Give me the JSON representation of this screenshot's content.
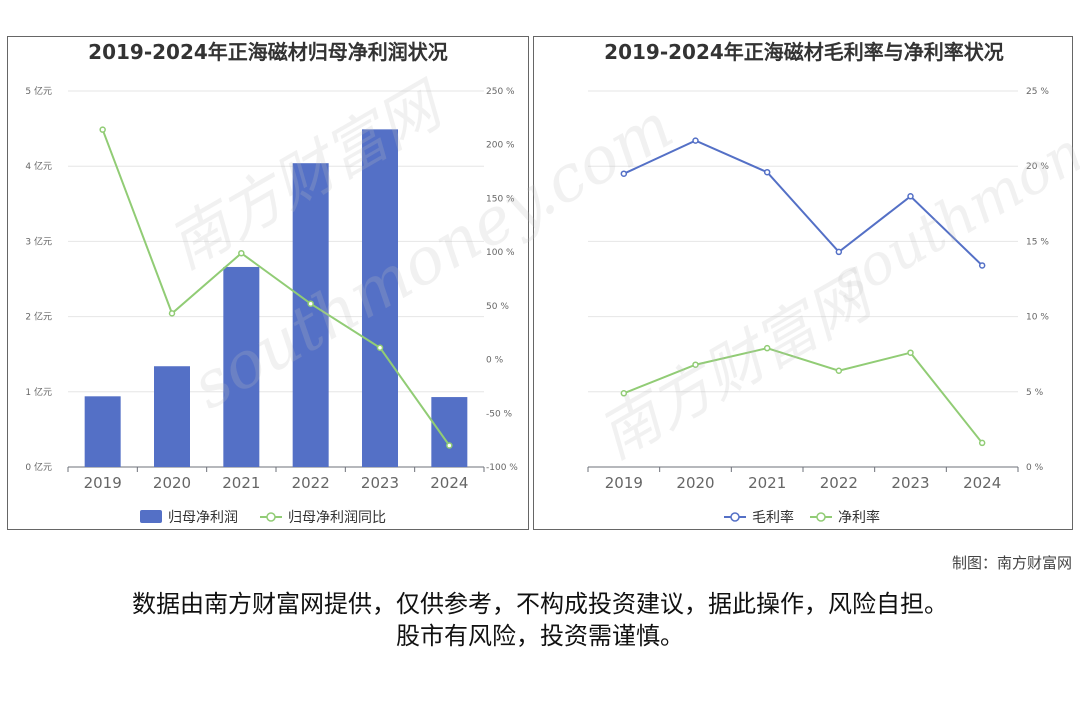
{
  "credit": "制图：南方财富网",
  "disclaimer": {
    "line1": "数据由南方财富网提供，仅供参考，不构成投资建议，据此操作，风险自担。",
    "line2": "股市有风险，投资需谨慎。"
  },
  "watermark": {
    "cn": "南方财富网",
    "en": "southmoney.com"
  },
  "chart_data": [
    {
      "type": "bar",
      "title": "2019-2024年正海磁材归母净利润状况",
      "categories": [
        "2019",
        "2020",
        "2021",
        "2022",
        "2023",
        "2024"
      ],
      "y_left": {
        "ticks": [
          "0 亿元",
          "1 亿元",
          "2 亿元",
          "3 亿元",
          "4 亿元",
          "5 亿元"
        ],
        "range": [
          0,
          5
        ]
      },
      "y_right": {
        "ticks": [
          "-100 %",
          "-50 %",
          "0 %",
          "50 %",
          "100 %",
          "150 %",
          "200 %",
          "250 %"
        ],
        "range": [
          -100,
          250
        ]
      },
      "series": [
        {
          "name": "归母净利润",
          "kind": "bar",
          "axis": "left",
          "values": [
            0.94,
            1.34,
            2.66,
            4.04,
            4.49,
            0.93
          ],
          "color": "#5470c6"
        },
        {
          "name": "归母净利润同比",
          "kind": "line",
          "axis": "right",
          "values": [
            214,
            43,
            99,
            52,
            11,
            -80
          ],
          "color": "#91cc75"
        }
      ],
      "grid": true,
      "legend_position": "bottom"
    },
    {
      "type": "line",
      "title": "2019-2024年正海磁材毛利率与净利率状况",
      "categories": [
        "2019",
        "2020",
        "2021",
        "2022",
        "2023",
        "2024"
      ],
      "y_right": {
        "ticks": [
          "0 %",
          "5 %",
          "10 %",
          "15 %",
          "20 %",
          "25 %"
        ],
        "range": [
          0,
          25
        ]
      },
      "series": [
        {
          "name": "毛利率",
          "values": [
            19.5,
            21.7,
            19.6,
            14.3,
            18.0,
            13.4
          ],
          "color": "#5470c6"
        },
        {
          "name": "净利率",
          "values": [
            4.9,
            6.8,
            7.9,
            6.4,
            7.6,
            1.6
          ],
          "color": "#91cc75"
        }
      ],
      "grid": true,
      "legend_position": "bottom"
    }
  ]
}
